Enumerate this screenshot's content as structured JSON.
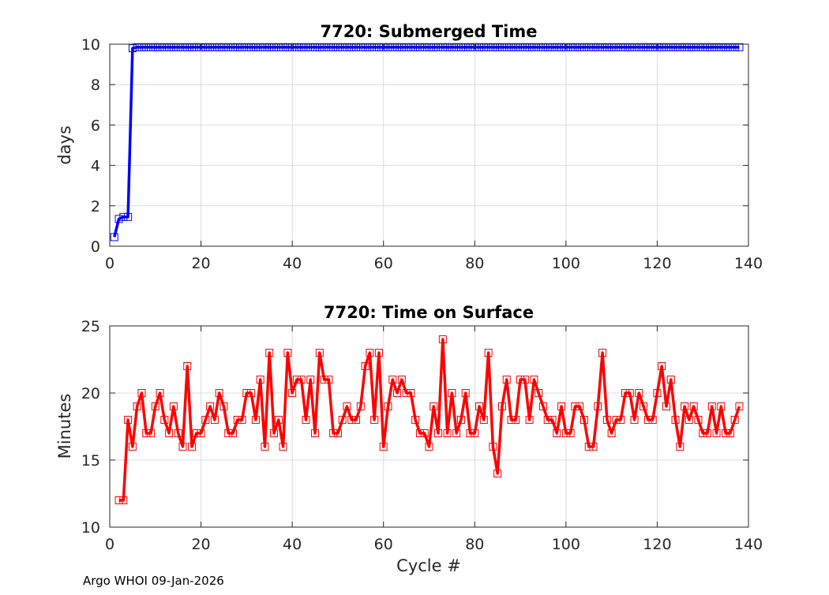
{
  "footer": {
    "credit": "Argo WHOI 09-Jan-2026"
  },
  "colors": {
    "top_series": "#0000ff",
    "bottom_series": "#ff0000",
    "grid": "#dcdcdc",
    "axis": "#262626"
  },
  "chart_data": [
    {
      "type": "line",
      "title": "7720: Submerged Time",
      "xlabel": "",
      "ylabel": "days",
      "xlim": [
        0,
        140
      ],
      "ylim": [
        0,
        10
      ],
      "xticks": [
        0,
        20,
        40,
        60,
        80,
        100,
        120,
        140
      ],
      "yticks": [
        0,
        2,
        4,
        6,
        8,
        10
      ],
      "grid": true,
      "marker": "square",
      "series": [
        {
          "name": "Submerged Time",
          "x": [
            1,
            2,
            3,
            4,
            5,
            6,
            7,
            8,
            9,
            10,
            11,
            12,
            13,
            14,
            15,
            16,
            17,
            18,
            19,
            20,
            21,
            22,
            23,
            24,
            25,
            26,
            27,
            28,
            29,
            30,
            31,
            32,
            33,
            34,
            35,
            36,
            37,
            38,
            39,
            40,
            41,
            42,
            43,
            44,
            45,
            46,
            47,
            48,
            49,
            50,
            51,
            52,
            53,
            54,
            55,
            56,
            57,
            58,
            59,
            60,
            61,
            62,
            63,
            64,
            65,
            66,
            67,
            68,
            69,
            70,
            71,
            72,
            73,
            74,
            75,
            76,
            77,
            78,
            79,
            80,
            81,
            82,
            83,
            84,
            85,
            86,
            87,
            88,
            89,
            90,
            91,
            92,
            93,
            94,
            95,
            96,
            97,
            98,
            99,
            100,
            101,
            102,
            103,
            104,
            105,
            106,
            107,
            108,
            109,
            110,
            111,
            112,
            113,
            114,
            115,
            116,
            117,
            118,
            119,
            120,
            121,
            122,
            123,
            124,
            125,
            126,
            127,
            128,
            129,
            130,
            131,
            132,
            133,
            134,
            135,
            136,
            137,
            138
          ],
          "values": [
            0.45,
            1.35,
            1.45,
            1.45,
            9.8,
            9.85,
            9.85,
            9.85,
            9.85,
            9.85,
            9.85,
            9.85,
            9.85,
            9.85,
            9.85,
            9.85,
            9.85,
            9.85,
            9.85,
            9.85,
            9.85,
            9.85,
            9.85,
            9.85,
            9.85,
            9.85,
            9.85,
            9.85,
            9.85,
            9.85,
            9.85,
            9.85,
            9.85,
            9.85,
            9.85,
            9.85,
            9.85,
            9.85,
            9.85,
            9.85,
            9.85,
            9.85,
            9.85,
            9.85,
            9.85,
            9.85,
            9.85,
            9.85,
            9.85,
            9.85,
            9.85,
            9.85,
            9.85,
            9.85,
            9.85,
            9.85,
            9.85,
            9.85,
            9.85,
            9.85,
            9.85,
            9.85,
            9.85,
            9.85,
            9.85,
            9.85,
            9.85,
            9.85,
            9.85,
            9.85,
            9.85,
            9.85,
            9.85,
            9.85,
            9.85,
            9.85,
            9.85,
            9.85,
            9.85,
            9.85,
            9.85,
            9.85,
            9.85,
            9.85,
            9.85,
            9.85,
            9.85,
            9.85,
            9.85,
            9.85,
            9.85,
            9.85,
            9.85,
            9.85,
            9.85,
            9.85,
            9.85,
            9.85,
            9.85,
            9.85,
            9.85,
            9.85,
            9.85,
            9.85,
            9.85,
            9.85,
            9.85,
            9.85,
            9.85,
            9.85,
            9.85,
            9.85,
            9.85,
            9.85,
            9.85,
            9.85,
            9.85,
            9.85,
            9.85,
            9.85,
            9.85,
            9.85,
            9.85,
            9.85,
            9.85,
            9.85,
            9.85,
            9.85,
            9.85,
            9.85,
            9.85,
            9.85,
            9.85,
            9.85,
            9.85,
            9.85,
            9.85,
            9.85
          ]
        }
      ]
    },
    {
      "type": "line",
      "title": "7720: Time on Surface",
      "xlabel": "Cycle #",
      "ylabel": "Minutes",
      "xlim": [
        0,
        140
      ],
      "ylim": [
        10,
        25
      ],
      "xticks": [
        0,
        20,
        40,
        60,
        80,
        100,
        120,
        140
      ],
      "yticks": [
        10,
        15,
        20,
        25
      ],
      "grid": true,
      "marker": "square",
      "series": [
        {
          "name": "Time on Surface",
          "x": [
            2,
            3,
            4,
            5,
            6,
            7,
            8,
            9,
            10,
            11,
            12,
            13,
            14,
            15,
            16,
            17,
            18,
            19,
            20,
            21,
            22,
            23,
            24,
            25,
            26,
            27,
            28,
            29,
            30,
            31,
            32,
            33,
            34,
            35,
            36,
            37,
            38,
            39,
            40,
            41,
            42,
            43,
            44,
            45,
            46,
            47,
            48,
            49,
            50,
            51,
            52,
            53,
            54,
            55,
            56,
            57,
            58,
            59,
            60,
            61,
            62,
            63,
            64,
            65,
            66,
            67,
            68,
            69,
            70,
            71,
            72,
            73,
            74,
            75,
            76,
            77,
            78,
            79,
            80,
            81,
            82,
            83,
            84,
            85,
            86,
            87,
            88,
            89,
            90,
            91,
            92,
            93,
            94,
            95,
            96,
            97,
            98,
            99,
            100,
            101,
            102,
            103,
            104,
            105,
            106,
            107,
            108,
            109,
            110,
            111,
            112,
            113,
            114,
            115,
            116,
            117,
            118,
            119,
            120,
            121,
            122,
            123,
            124,
            125,
            126,
            127,
            128,
            129,
            130,
            131,
            132,
            133,
            134,
            135,
            136,
            137,
            138
          ],
          "values": [
            12,
            12,
            18,
            16,
            19,
            20,
            17,
            17,
            19,
            20,
            18,
            17,
            19,
            17,
            16,
            22,
            16,
            17,
            17,
            18,
            19,
            18,
            20,
            19,
            17,
            17,
            18,
            18,
            20,
            20,
            18,
            21,
            16,
            23,
            17,
            18,
            16,
            23,
            20,
            21,
            21,
            18,
            21,
            17,
            23,
            21,
            21,
            17,
            17,
            18,
            19,
            18,
            18,
            19,
            22,
            23,
            18,
            23,
            16,
            19,
            21,
            20,
            21,
            20,
            20,
            18,
            17,
            17,
            16,
            19,
            17,
            24,
            17,
            20,
            17,
            18,
            20,
            17,
            17,
            19,
            18,
            23,
            16,
            14,
            19,
            21,
            18,
            18,
            21,
            21,
            18,
            21,
            20,
            19,
            18,
            18,
            17,
            19,
            17,
            17,
            19,
            19,
            18,
            16,
            16,
            19,
            23,
            18,
            17,
            18,
            18,
            20,
            20,
            18,
            20,
            19,
            18,
            18,
            20,
            22,
            19,
            21,
            18,
            16,
            19,
            18,
            19,
            18,
            17,
            17,
            19,
            17,
            19,
            17,
            17,
            18,
            19
          ]
        }
      ]
    }
  ]
}
